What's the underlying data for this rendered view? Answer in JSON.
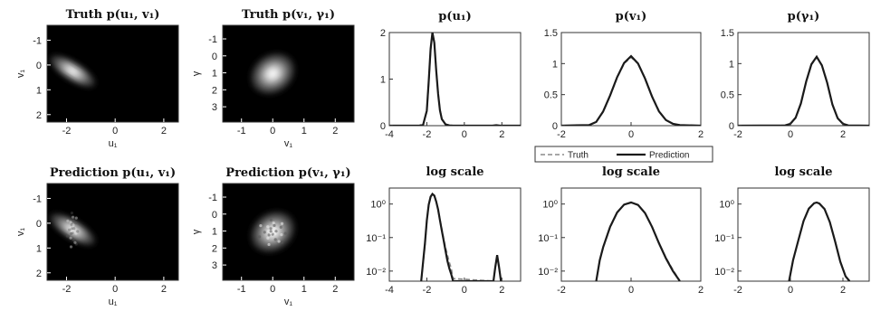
{
  "chart_data": [
    {
      "type": "heatmap",
      "id": "h1",
      "title": "Truth p(u₁, v₁)",
      "xlabel": "u₁",
      "ylabel": "v₁",
      "xlim": [
        -2.8,
        2.6
      ],
      "ylim": [
        -1.6,
        2.3
      ],
      "y_reversed": true,
      "xticks": [
        -2,
        0,
        2
      ],
      "yticks": [
        -1,
        0,
        1,
        2
      ],
      "blob": {
        "cx": -1.75,
        "cy": 0.25,
        "sx": 0.28,
        "sy": 0.85,
        "tilt_deg": 58,
        "noise": 0
      }
    },
    {
      "type": "heatmap",
      "id": "h2",
      "title": "Truth p(v₁, γ₁)",
      "xlabel": "v₁",
      "ylabel": "γ",
      "xlim": [
        -1.6,
        2.6
      ],
      "ylim": [
        -1.8,
        3.9
      ],
      "y_reversed": true,
      "xticks": [
        -1,
        0,
        1,
        2
      ],
      "yticks": [
        -1,
        0,
        1,
        2,
        3
      ],
      "blob": {
        "cx": 0.0,
        "cy": 1.05,
        "sx": 0.55,
        "sy": 0.9,
        "tilt_deg": 35,
        "noise": 0
      }
    },
    {
      "type": "heatmap",
      "id": "h3",
      "title": "Prediction p(u₁, v₁)",
      "xlabel": "u₁",
      "ylabel": "v₁",
      "xlim": [
        -2.8,
        2.6
      ],
      "ylim": [
        -1.6,
        2.3
      ],
      "y_reversed": true,
      "xticks": [
        -2,
        0,
        2
      ],
      "yticks": [
        -1,
        0,
        1,
        2
      ],
      "blob": {
        "cx": -1.75,
        "cy": 0.25,
        "sx": 0.28,
        "sy": 0.85,
        "tilt_deg": 58,
        "noise": 0.25
      }
    },
    {
      "type": "heatmap",
      "id": "h4",
      "title": "Prediction p(v₁, γ₁)",
      "xlabel": "v₁",
      "ylabel": "γ",
      "xlim": [
        -1.6,
        2.6
      ],
      "ylim": [
        -1.8,
        3.9
      ],
      "y_reversed": true,
      "xticks": [
        -1,
        0,
        1,
        2
      ],
      "yticks": [
        -1,
        0,
        1,
        2,
        3
      ],
      "blob": {
        "cx": 0.0,
        "cy": 1.05,
        "sx": 0.55,
        "sy": 0.9,
        "tilt_deg": 35,
        "noise": 0.35
      }
    },
    {
      "type": "line",
      "id": "l1",
      "title": "p(u₁)",
      "xlim": [
        -4,
        3
      ],
      "ylim": [
        0,
        2
      ],
      "xticks": [
        -4,
        -2,
        0,
        2
      ],
      "yticks": [
        0,
        1,
        2
      ],
      "log": false,
      "series": [
        {
          "name": "Truth",
          "x": [
            -4,
            -2.4,
            -2.2,
            -2.0,
            -1.9,
            -1.8,
            -1.7,
            -1.6,
            -1.5,
            -1.4,
            -1.3,
            -1.2,
            -1.0,
            -0.8,
            -0.6,
            0,
            1.5,
            1.7,
            1.9,
            3
          ],
          "y": [
            0,
            0,
            0.02,
            0.3,
            0.9,
            1.6,
            1.98,
            1.8,
            1.2,
            0.7,
            0.35,
            0.15,
            0.03,
            0.005,
            0,
            0,
            0,
            0.01,
            0,
            0
          ]
        },
        {
          "name": "Prediction",
          "x": [
            -4,
            -2.4,
            -2.2,
            -2.0,
            -1.9,
            -1.8,
            -1.7,
            -1.6,
            -1.5,
            -1.4,
            -1.3,
            -1.2,
            -1.0,
            -0.8,
            -0.6,
            0,
            1.5,
            1.7,
            1.9,
            3
          ],
          "y": [
            0,
            0,
            0.02,
            0.32,
            0.95,
            1.65,
            2.0,
            1.78,
            1.18,
            0.68,
            0.33,
            0.14,
            0.03,
            0.005,
            0,
            0,
            0,
            0.01,
            0,
            0
          ]
        }
      ]
    },
    {
      "type": "line",
      "id": "l2",
      "title": "p(v₁)",
      "xlim": [
        -2,
        2
      ],
      "ylim": [
        0,
        1.5
      ],
      "xticks": [
        -2,
        0,
        2
      ],
      "yticks": [
        0,
        0.5,
        1,
        1.5
      ],
      "log": false,
      "series": [
        {
          "name": "Truth",
          "x": [
            -2,
            -1.2,
            -1.0,
            -0.8,
            -0.6,
            -0.4,
            -0.2,
            0,
            0.2,
            0.4,
            0.6,
            0.8,
            1.0,
            1.2,
            1.4,
            2
          ],
          "y": [
            0,
            0.01,
            0.06,
            0.22,
            0.48,
            0.77,
            1.0,
            1.1,
            1.0,
            0.77,
            0.48,
            0.24,
            0.09,
            0.03,
            0.01,
            0
          ]
        },
        {
          "name": "Prediction",
          "x": [
            -2,
            -1.2,
            -1.0,
            -0.8,
            -0.6,
            -0.4,
            -0.2,
            0,
            0.2,
            0.4,
            0.6,
            0.8,
            1.0,
            1.2,
            1.4,
            2
          ],
          "y": [
            0,
            0.01,
            0.06,
            0.23,
            0.49,
            0.78,
            1.01,
            1.12,
            1.0,
            0.76,
            0.47,
            0.23,
            0.09,
            0.03,
            0.01,
            0
          ]
        }
      ]
    },
    {
      "type": "line",
      "id": "l3",
      "title": "p(γ₁)",
      "xlim": [
        -2,
        3
      ],
      "ylim": [
        0,
        1.5
      ],
      "xticks": [
        -2,
        0,
        2
      ],
      "yticks": [
        0,
        0.5,
        1,
        1.5
      ],
      "log": false,
      "series": [
        {
          "name": "Truth",
          "x": [
            -2,
            -0.2,
            0,
            0.2,
            0.4,
            0.6,
            0.8,
            1.0,
            1.2,
            1.4,
            1.6,
            1.8,
            2.0,
            2.2,
            3
          ],
          "y": [
            0,
            0.005,
            0.03,
            0.12,
            0.35,
            0.7,
            0.98,
            1.1,
            0.98,
            0.7,
            0.35,
            0.12,
            0.03,
            0.005,
            0
          ]
        },
        {
          "name": "Prediction",
          "x": [
            -2,
            -0.2,
            0,
            0.2,
            0.4,
            0.6,
            0.8,
            1.0,
            1.2,
            1.4,
            1.6,
            1.8,
            2.0,
            2.2,
            3
          ],
          "y": [
            0,
            0.005,
            0.03,
            0.13,
            0.36,
            0.71,
            0.99,
            1.11,
            0.97,
            0.69,
            0.34,
            0.12,
            0.03,
            0.005,
            0
          ]
        }
      ]
    },
    {
      "type": "line",
      "id": "l4",
      "title": "log scale",
      "xlim": [
        -4,
        3
      ],
      "ylim": [
        0.005,
        3
      ],
      "xticks": [
        -4,
        -2,
        0,
        2
      ],
      "yticks": [
        0.01,
        0.1,
        1
      ],
      "ytick_labels": [
        "10⁻²",
        "10⁻¹",
        "10⁰"
      ],
      "log": true,
      "series": [
        {
          "name": "Truth",
          "x": [
            -2.3,
            -2.1,
            -2.0,
            -1.9,
            -1.8,
            -1.7,
            -1.6,
            -1.5,
            -1.4,
            -1.3,
            -1.2,
            -1.1,
            -1.0,
            -0.9,
            -0.8,
            -0.7,
            -0.6,
            1.55,
            1.65,
            1.75,
            1.85,
            1.95
          ],
          "y": [
            0.005,
            0.06,
            0.3,
            0.9,
            1.6,
            1.98,
            1.8,
            1.2,
            0.7,
            0.35,
            0.18,
            0.09,
            0.05,
            0.03,
            0.018,
            0.012,
            0.006,
            0.005,
            0.012,
            0.028,
            0.012,
            0.005
          ]
        },
        {
          "name": "Prediction",
          "x": [
            -2.3,
            -2.1,
            -2.0,
            -1.9,
            -1.8,
            -1.7,
            -1.6,
            -1.5,
            -1.4,
            -1.3,
            -1.2,
            -1.1,
            -1.0,
            -0.9,
            -0.8,
            -0.7,
            -0.6,
            1.55,
            1.65,
            1.75,
            1.85,
            1.95
          ],
          "y": [
            0.005,
            0.07,
            0.32,
            0.95,
            1.65,
            2.0,
            1.78,
            1.18,
            0.68,
            0.33,
            0.16,
            0.08,
            0.04,
            0.02,
            0.012,
            0.008,
            0.005,
            0.005,
            0.013,
            0.03,
            0.013,
            0.005
          ]
        }
      ]
    },
    {
      "type": "line",
      "id": "l5",
      "title": "log scale",
      "xlim": [
        -2,
        2
      ],
      "ylim": [
        0.005,
        3
      ],
      "xticks": [
        -2,
        0,
        2
      ],
      "yticks": [
        0.01,
        0.1,
        1
      ],
      "ytick_labels": [
        "10⁻²",
        "10⁻¹",
        "10⁰"
      ],
      "log": true,
      "series": [
        {
          "name": "Truth",
          "x": [
            -1.0,
            -0.9,
            -0.8,
            -0.6,
            -0.4,
            -0.2,
            0,
            0.2,
            0.4,
            0.6,
            0.8,
            1.0,
            1.2,
            1.4
          ],
          "y": [
            0.005,
            0.02,
            0.05,
            0.2,
            0.55,
            0.95,
            1.1,
            0.95,
            0.55,
            0.22,
            0.07,
            0.025,
            0.011,
            0.005
          ]
        },
        {
          "name": "Prediction",
          "x": [
            -1.0,
            -0.9,
            -0.8,
            -0.6,
            -0.4,
            -0.2,
            0,
            0.2,
            0.4,
            0.6,
            0.8,
            1.0,
            1.2,
            1.4
          ],
          "y": [
            0.005,
            0.021,
            0.052,
            0.21,
            0.56,
            0.96,
            1.12,
            0.94,
            0.54,
            0.21,
            0.068,
            0.024,
            0.01,
            0.005
          ]
        }
      ]
    },
    {
      "type": "line",
      "id": "l6",
      "title": "log scale",
      "xlim": [
        -2,
        3
      ],
      "ylim": [
        0.005,
        3
      ],
      "xticks": [
        -2,
        0,
        2
      ],
      "yticks": [
        0.01,
        0.1,
        1
      ],
      "ytick_labels": [
        "10⁻²",
        "10⁻¹",
        "10⁰"
      ],
      "log": true,
      "series": [
        {
          "name": "Truth",
          "x": [
            -0.05,
            0.1,
            0.3,
            0.5,
            0.7,
            0.9,
            1.0,
            1.1,
            1.3,
            1.5,
            1.7,
            1.9,
            2.1,
            2.25
          ],
          "y": [
            0.005,
            0.02,
            0.08,
            0.3,
            0.72,
            1.05,
            1.1,
            1.05,
            0.72,
            0.3,
            0.08,
            0.02,
            0.007,
            0.005
          ]
        },
        {
          "name": "Prediction",
          "x": [
            -0.05,
            0.1,
            0.3,
            0.5,
            0.7,
            0.9,
            1.0,
            1.1,
            1.3,
            1.5,
            1.7,
            1.9,
            2.1,
            2.25
          ],
          "y": [
            0.005,
            0.021,
            0.082,
            0.31,
            0.73,
            1.06,
            1.11,
            1.04,
            0.71,
            0.29,
            0.078,
            0.019,
            0.007,
            0.005
          ]
        }
      ]
    }
  ],
  "legend": {
    "truth_label": "Truth",
    "prediction_label": "Prediction",
    "placement": "below p(v₁)"
  },
  "colors": {
    "truth_line": "#8a8a8a",
    "prediction_line": "#1a1a1a",
    "heatmap_background": "#000000",
    "heatmap_peak": "#ffffff"
  }
}
